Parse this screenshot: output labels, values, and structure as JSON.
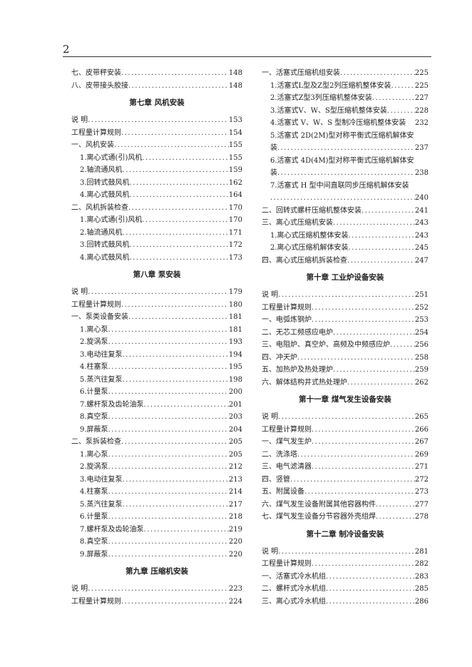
{
  "page_number": "2",
  "left": [
    {
      "text": "七、皮带秤安装",
      "page": "148",
      "indent": 0
    },
    {
      "text": "八、皮带接头胶接",
      "page": "148",
      "indent": 0
    },
    {
      "heading": "第七章  风机安装"
    },
    {
      "text": "说  明",
      "page": "153",
      "indent": 0
    },
    {
      "text": "工程量计算规则",
      "page": "154",
      "indent": 0
    },
    {
      "text": "一、风机安装",
      "page": "155",
      "indent": 0
    },
    {
      "text": "1.离心式通(引)风机",
      "page": "155",
      "indent": 1
    },
    {
      "text": "2.轴流通风机",
      "page": "159",
      "indent": 1
    },
    {
      "text": "3.回转式鼓风机",
      "page": "162",
      "indent": 1
    },
    {
      "text": "4.离心式鼓风机",
      "page": "164",
      "indent": 1
    },
    {
      "text": "二、风机拆装检查",
      "page": "170",
      "indent": 0
    },
    {
      "text": "1.离心式通(引)风机",
      "page": "170",
      "indent": 1
    },
    {
      "text": "2.轴流通风机",
      "page": "171",
      "indent": 1
    },
    {
      "text": "3.回转式鼓风机",
      "page": "172",
      "indent": 1
    },
    {
      "text": "4.离心式鼓风机",
      "page": "173",
      "indent": 1
    },
    {
      "heading": "第八章  泵安装"
    },
    {
      "text": "说  明",
      "page": "179",
      "indent": 0
    },
    {
      "text": "工程量计算规则",
      "page": "180",
      "indent": 0
    },
    {
      "text": "一、泵类设备安装",
      "page": "181",
      "indent": 0
    },
    {
      "text": "1.离心泵",
      "page": "181",
      "indent": 1
    },
    {
      "text": "2.旋涡泵",
      "page": "193",
      "indent": 1
    },
    {
      "text": "3.电动往复泵",
      "page": "194",
      "indent": 1
    },
    {
      "text": "4.柱塞泵",
      "page": "195",
      "indent": 1
    },
    {
      "text": "5.蒸汽往复泵",
      "page": "198",
      "indent": 1
    },
    {
      "text": "6.计量泵",
      "page": "200",
      "indent": 1
    },
    {
      "text": "7.螺杆泵及齿轮油泵",
      "page": "201",
      "indent": 1
    },
    {
      "text": "8.真空泵",
      "page": "203",
      "indent": 1
    },
    {
      "text": "9.屏蔽泵",
      "page": "204",
      "indent": 1
    },
    {
      "text": "二、泵拆装检查",
      "page": "205",
      "indent": 0
    },
    {
      "text": "1.离心泵",
      "page": "205",
      "indent": 1
    },
    {
      "text": "2.旋涡泵",
      "page": "212",
      "indent": 1
    },
    {
      "text": "3.电动往复泵",
      "page": "213",
      "indent": 1
    },
    {
      "text": "4.柱塞泵",
      "page": "214",
      "indent": 1
    },
    {
      "text": "5.蒸汽往复泵",
      "page": "217",
      "indent": 1
    },
    {
      "text": "6.计量泵",
      "page": "218",
      "indent": 1
    },
    {
      "text": "7.螺杆泵及齿轮油泵",
      "page": "219",
      "indent": 1
    },
    {
      "text": "8.真空泵",
      "page": "220",
      "indent": 1
    },
    {
      "text": "9.屏蔽泵",
      "page": "220",
      "indent": 1
    },
    {
      "heading": "第九章  压缩机安装"
    },
    {
      "text": "说  明",
      "page": "223",
      "indent": 0
    },
    {
      "text": "工程量计算规则",
      "page": "224",
      "indent": 0
    }
  ],
  "right": [
    {
      "text": "一、活塞式压缩机组安装",
      "page": "225",
      "indent": 0
    },
    {
      "text": "1.活塞式L型及Z型2列压缩机整体安装",
      "page": "225",
      "indent": 1
    },
    {
      "text": "2.活塞式Z型3列压缩机整体安装",
      "page": "227",
      "indent": 1
    },
    {
      "text": "3.活塞式V、W、S型压缩机整体安装",
      "page": "228",
      "indent": 1
    },
    {
      "text": "4.活塞式 V、W、S 型制冷压缩机整体安装 ",
      "page": "232",
      "indent": 1,
      "nodots": true
    },
    {
      "text": "5.活塞式 2D(2M)型对称平衡式压缩机解体安",
      "indent": 1,
      "nodots": true
    },
    {
      "text": "装",
      "page": "237",
      "indent": 1
    },
    {
      "text": "6.活塞式 4D(4M)型对称平衡式压缩机解体安",
      "indent": 1,
      "nodots": true
    },
    {
      "text": "装",
      "page": "238",
      "indent": 1
    },
    {
      "text": "7.活塞式 H 型中间直联同步压缩机解体安装",
      "indent": 1,
      "nodots": true
    },
    {
      "text": "",
      "page": "240",
      "indent": 1
    },
    {
      "text": "二、回转式螺杆压缩机整体安装",
      "page": "241",
      "indent": 0
    },
    {
      "text": "三、离心式压缩机安装",
      "page": "243",
      "indent": 0
    },
    {
      "text": "1.离心式压缩机整体安装",
      "page": "243",
      "indent": 1
    },
    {
      "text": "2.离心式压缩机解体安装",
      "page": "245",
      "indent": 1
    },
    {
      "text": "四、离心式压缩机拆装检查",
      "page": "247",
      "indent": 0
    },
    {
      "heading": "第十章  工业炉设备安装"
    },
    {
      "text": "说  明",
      "page": "251",
      "indent": 0
    },
    {
      "text": "工程量计算规则",
      "page": "252",
      "indent": 0
    },
    {
      "text": "一、电弧炼钢炉",
      "page": "253",
      "indent": 0
    },
    {
      "text": "二、无芯工频感应电炉",
      "page": "254",
      "indent": 0
    },
    {
      "text": "三、电阻炉、真空炉、高频及中频感应炉",
      "page": "256",
      "indent": 0
    },
    {
      "text": "四、冲天炉",
      "page": "258",
      "indent": 0
    },
    {
      "text": "五、加热炉及热处理炉",
      "page": "259",
      "indent": 0
    },
    {
      "text": "六、解体结构井式热处理炉",
      "page": "262",
      "indent": 0
    },
    {
      "heading": "第十一章  煤气发生设备安装"
    },
    {
      "text": "说  明",
      "page": "265",
      "indent": 0
    },
    {
      "text": "工程量计算规则",
      "page": "266",
      "indent": 0
    },
    {
      "text": "一、煤气发生炉",
      "page": "267",
      "indent": 0
    },
    {
      "text": "二、洗涤塔",
      "page": "269",
      "indent": 0
    },
    {
      "text": "三、电气滤清器",
      "page": "271",
      "indent": 0
    },
    {
      "text": "四、竖管",
      "page": "272",
      "indent": 0
    },
    {
      "text": "五、附属设备",
      "page": "273",
      "indent": 0
    },
    {
      "text": "六、煤气发生设备附属其他容器构件",
      "page": "277",
      "indent": 0
    },
    {
      "text": "七、煤气发生设备分节容器外壳组焊",
      "page": "278",
      "indent": 0
    },
    {
      "heading": "第十二章  制冷设备安装"
    },
    {
      "text": "说  明",
      "page": "281",
      "indent": 0
    },
    {
      "text": "工程量计算规则",
      "page": "282",
      "indent": 0
    },
    {
      "text": "一、活塞式冷水机组",
      "page": "283",
      "indent": 0
    },
    {
      "text": "二、螺杆式冷水机组",
      "page": "285",
      "indent": 0
    },
    {
      "text": "三、离心式冷水机组",
      "page": "286",
      "indent": 0
    }
  ]
}
